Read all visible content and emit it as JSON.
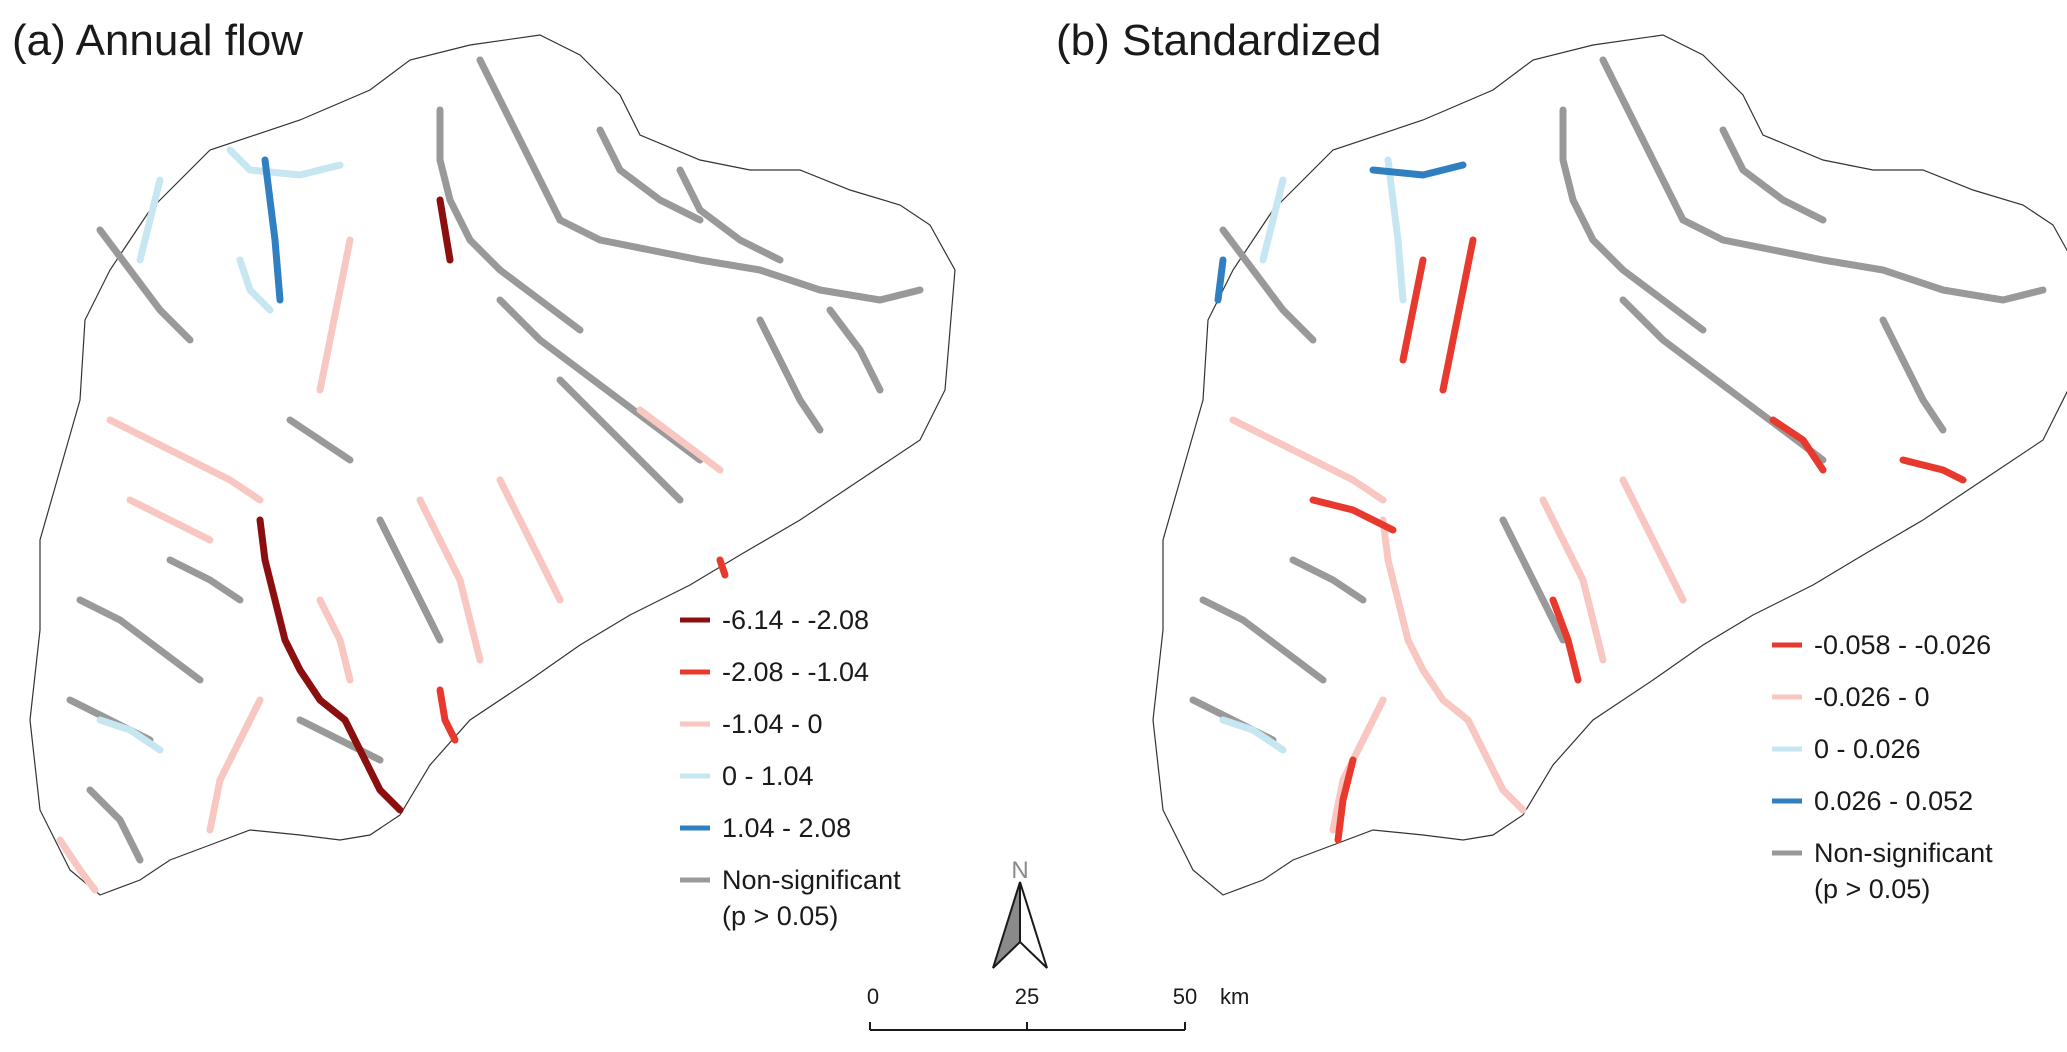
{
  "panels": [
    {
      "id": "a",
      "title": "(a) Annual flow",
      "legend": [
        {
          "label": "-6.14 - -2.08",
          "color": "#8b0f0f"
        },
        {
          "label": "-2.08 - -1.04",
          "color": "#e8392e"
        },
        {
          "label": "-1.04 - 0",
          "color": "#f9c7c1"
        },
        {
          "label": "0 - 1.04",
          "color": "#c6e6f2"
        },
        {
          "label": "1.04 - 2.08",
          "color": "#2f7fc1"
        },
        {
          "label": "Non-significant",
          "color": "#999999"
        }
      ],
      "legend_note": "(p > 0.05)"
    },
    {
      "id": "b",
      "title": "(b) Standardized",
      "legend": [
        {
          "label": "-0.058 - -0.026",
          "color": "#e8392e"
        },
        {
          "label": "-0.026 - 0",
          "color": "#f9c7c1"
        },
        {
          "label": "0 - 0.026",
          "color": "#c6e6f2"
        },
        {
          "label": "0.026 - 0.052",
          "color": "#2f7fc1"
        },
        {
          "label": "Non-significant",
          "color": "#999999"
        }
      ],
      "legend_note": "(p > 0.05)"
    }
  ],
  "north_arrow": {
    "label": "N"
  },
  "scale_bar": {
    "ticks": [
      "0",
      "25",
      "50"
    ],
    "unit": "km"
  }
}
